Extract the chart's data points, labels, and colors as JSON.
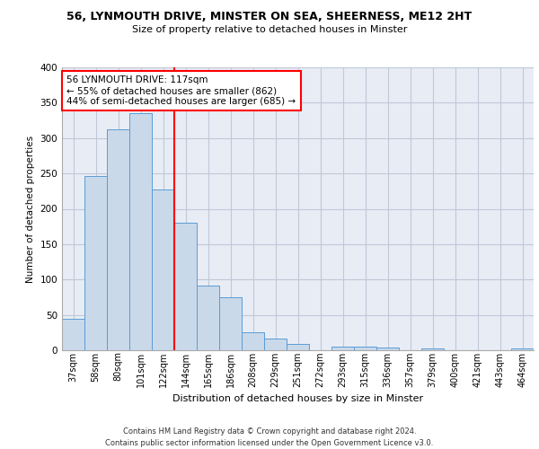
{
  "title_line1": "56, LYNMOUTH DRIVE, MINSTER ON SEA, SHEERNESS, ME12 2HT",
  "title_line2": "Size of property relative to detached houses in Minster",
  "xlabel": "Distribution of detached houses by size in Minster",
  "ylabel": "Number of detached properties",
  "footer_line1": "Contains HM Land Registry data © Crown copyright and database right 2024.",
  "footer_line2": "Contains public sector information licensed under the Open Government Licence v3.0.",
  "bin_labels": [
    "37sqm",
    "58sqm",
    "80sqm",
    "101sqm",
    "122sqm",
    "144sqm",
    "165sqm",
    "186sqm",
    "208sqm",
    "229sqm",
    "251sqm",
    "272sqm",
    "293sqm",
    "315sqm",
    "336sqm",
    "357sqm",
    "379sqm",
    "400sqm",
    "421sqm",
    "443sqm",
    "464sqm"
  ],
  "bar_values": [
    44,
    246,
    312,
    335,
    227,
    180,
    91,
    75,
    26,
    16,
    9,
    0,
    5,
    5,
    4,
    0,
    3,
    0,
    0,
    0,
    3
  ],
  "bar_color": "#c9d9ea",
  "bar_edgecolor": "#5b9bd5",
  "grid_color": "#c0c8d8",
  "background_color": "#e8edf5",
  "vline_bin_index": 4,
  "annotation_title": "56 LYNMOUTH DRIVE: 117sqm",
  "annotation_line1": "← 55% of detached houses are smaller (862)",
  "annotation_line2": "44% of semi-detached houses are larger (685) →",
  "ylim": [
    0,
    400
  ],
  "yticks": [
    0,
    50,
    100,
    150,
    200,
    250,
    300,
    350,
    400
  ]
}
